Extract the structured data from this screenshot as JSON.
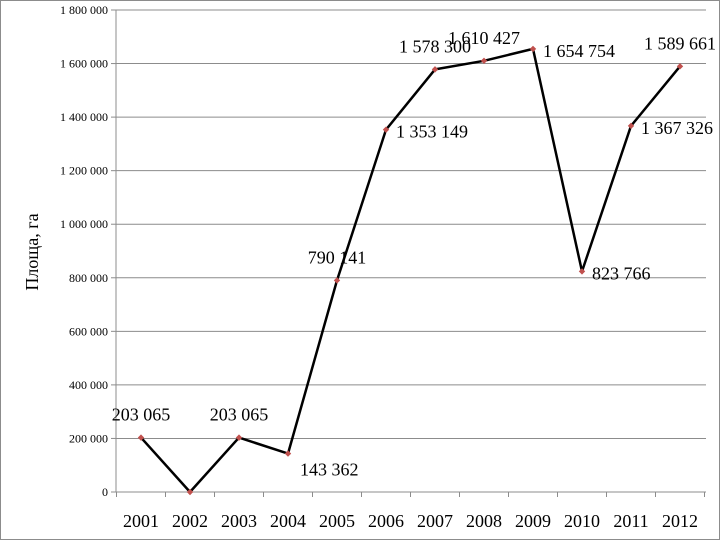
{
  "chart_data": {
    "type": "line",
    "title": "",
    "xlabel": "",
    "ylabel": "Площа, га",
    "categories": [
      "2001",
      "2002",
      "2003",
      "2004",
      "2005",
      "2006",
      "2007",
      "2008",
      "2009",
      "2010",
      "2011",
      "2012"
    ],
    "values": [
      203065,
      0,
      203065,
      143362,
      790141,
      1353149,
      1578300,
      1610427,
      1654754,
      823766,
      1367326,
      1589661
    ],
    "data_labels": [
      "203 065",
      "",
      "203 065",
      "143 362",
      "790 141",
      "1 353 149",
      "1 578 300",
      "1 610 427",
      "1 654 754",
      "823 766",
      "1 367 326",
      "1 589 661"
    ],
    "yticks": [
      0,
      200000,
      400000,
      600000,
      800000,
      1000000,
      1200000,
      1400000,
      1600000,
      1800000
    ],
    "ytick_labels": [
      "0",
      "200 000",
      "400 000",
      "600 000",
      "800 000",
      "1 000 000",
      "1 200 000",
      "1 400 000",
      "1 600 000",
      "1 800 000"
    ],
    "ylim": [
      0,
      1800000
    ],
    "grid": true,
    "legend": "none",
    "colors": {
      "line": "#000000",
      "marker": "#c0504d",
      "grid": "#8c8c8c",
      "frame": "#8c8c8c"
    }
  }
}
